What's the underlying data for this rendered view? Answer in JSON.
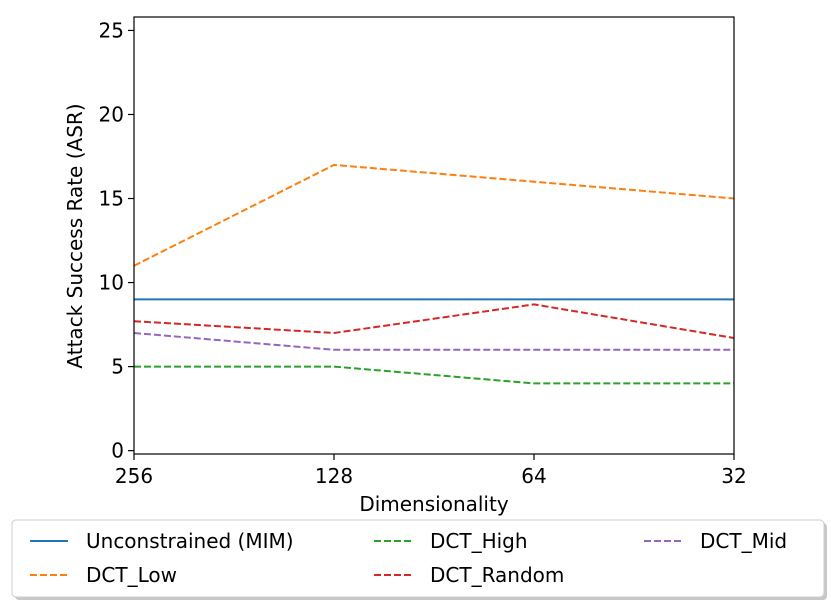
{
  "chart_data": {
    "type": "line",
    "title": "",
    "xlabel": "Dimensionality",
    "ylabel": "Attack Success Rate (ASR)",
    "categories": [
      "256",
      "128",
      "64",
      "32"
    ],
    "ylim": [
      -0.2,
      25.8
    ],
    "yticks": [
      0,
      5,
      10,
      15,
      20,
      25
    ],
    "grid": false,
    "legend_position": "bottom",
    "series": [
      {
        "name": "Unconstrained (MIM)",
        "values": [
          9,
          9,
          9,
          9
        ],
        "color": "#1f77b4",
        "style": "solid"
      },
      {
        "name": "DCT_Low",
        "values": [
          11,
          17,
          16,
          15
        ],
        "color": "#ff7f0e",
        "style": "dashed"
      },
      {
        "name": "DCT_High",
        "values": [
          5,
          5,
          4,
          4
        ],
        "color": "#2ca02c",
        "style": "dashed"
      },
      {
        "name": "DCT_Random",
        "values": [
          7.7,
          7,
          8.7,
          6.7
        ],
        "color": "#d62728",
        "style": "dashed"
      },
      {
        "name": "DCT_Mid",
        "values": [
          7,
          6,
          6,
          6
        ],
        "color": "#9467bd",
        "style": "dashed"
      }
    ]
  }
}
